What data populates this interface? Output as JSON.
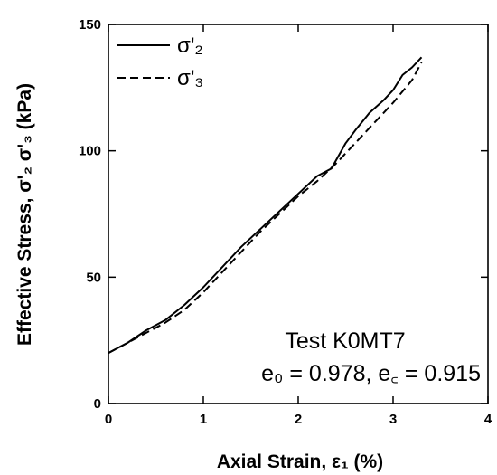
{
  "chart_data": {
    "type": "line",
    "xlabel": "Axial Strain, ε₁ (%)",
    "ylabel": "Effective Stress, σ'₂ σ'₃ (kPa)",
    "xlim": [
      0,
      4
    ],
    "ylim": [
      0,
      150
    ],
    "x_ticks": [
      0,
      1,
      2,
      3,
      4
    ],
    "y_ticks": [
      0,
      50,
      100,
      150
    ],
    "grid": false,
    "legend_position": "top-left",
    "series": [
      {
        "name": "σ'₂",
        "line_style": "solid",
        "x": [
          0,
          0.2,
          0.4,
          0.6,
          0.8,
          1.0,
          1.2,
          1.4,
          1.6,
          1.8,
          2.0,
          2.2,
          2.35,
          2.5,
          2.6,
          2.75,
          2.9,
          3.0,
          3.1,
          3.2,
          3.3
        ],
        "y": [
          20,
          24,
          29,
          33,
          39,
          46,
          54,
          62,
          69,
          76,
          83,
          90,
          93,
          103,
          108,
          115,
          120,
          124,
          130,
          133,
          137
        ]
      },
      {
        "name": "σ'₃",
        "line_style": "dashed",
        "x": [
          0,
          0.2,
          0.4,
          0.6,
          0.8,
          1.0,
          1.2,
          1.4,
          1.6,
          1.8,
          2.0,
          2.2,
          2.4,
          2.6,
          2.8,
          3.0,
          3.2,
          3.3
        ],
        "y": [
          20,
          24,
          28,
          32,
          37,
          44,
          52,
          60,
          68,
          75,
          82,
          88,
          95,
          103,
          111,
          119,
          128,
          135
        ]
      }
    ],
    "annotations": [
      {
        "text": "Test K0MT7"
      },
      {
        "text": "e₀ = 0.978, e꜀ = 0.915"
      }
    ]
  }
}
